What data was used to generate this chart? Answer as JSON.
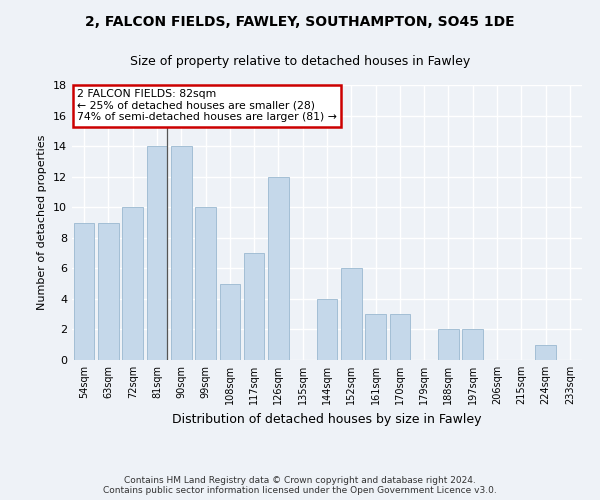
{
  "title1": "2, FALCON FIELDS, FAWLEY, SOUTHAMPTON, SO45 1DE",
  "title2": "Size of property relative to detached houses in Fawley",
  "xlabel": "Distribution of detached houses by size in Fawley",
  "ylabel": "Number of detached properties",
  "categories": [
    "54sqm",
    "63sqm",
    "72sqm",
    "81sqm",
    "90sqm",
    "99sqm",
    "108sqm",
    "117sqm",
    "126sqm",
    "135sqm",
    "144sqm",
    "152sqm",
    "161sqm",
    "170sqm",
    "179sqm",
    "188sqm",
    "197sqm",
    "206sqm",
    "215sqm",
    "224sqm",
    "233sqm"
  ],
  "values": [
    9,
    9,
    10,
    14,
    14,
    10,
    5,
    7,
    12,
    0,
    4,
    6,
    3,
    3,
    0,
    2,
    2,
    0,
    0,
    1,
    0
  ],
  "bar_color": "#c5d8ea",
  "bar_edge_color": "#9ab8d0",
  "ylim": [
    0,
    18
  ],
  "yticks": [
    0,
    2,
    4,
    6,
    8,
    10,
    12,
    14,
    16,
    18
  ],
  "annotation_line1": "2 FALCON FIELDS: 82sqm",
  "annotation_line2": "← 25% of detached houses are smaller (28)",
  "annotation_line3": "74% of semi-detached houses are larger (81) →",
  "annotation_box_color": "#ffffff",
  "annotation_box_edge": "#cc0000",
  "vline_x": 3.42,
  "footer": "Contains HM Land Registry data © Crown copyright and database right 2024.\nContains public sector information licensed under the Open Government Licence v3.0.",
  "background_color": "#eef2f7",
  "grid_color": "#ffffff"
}
